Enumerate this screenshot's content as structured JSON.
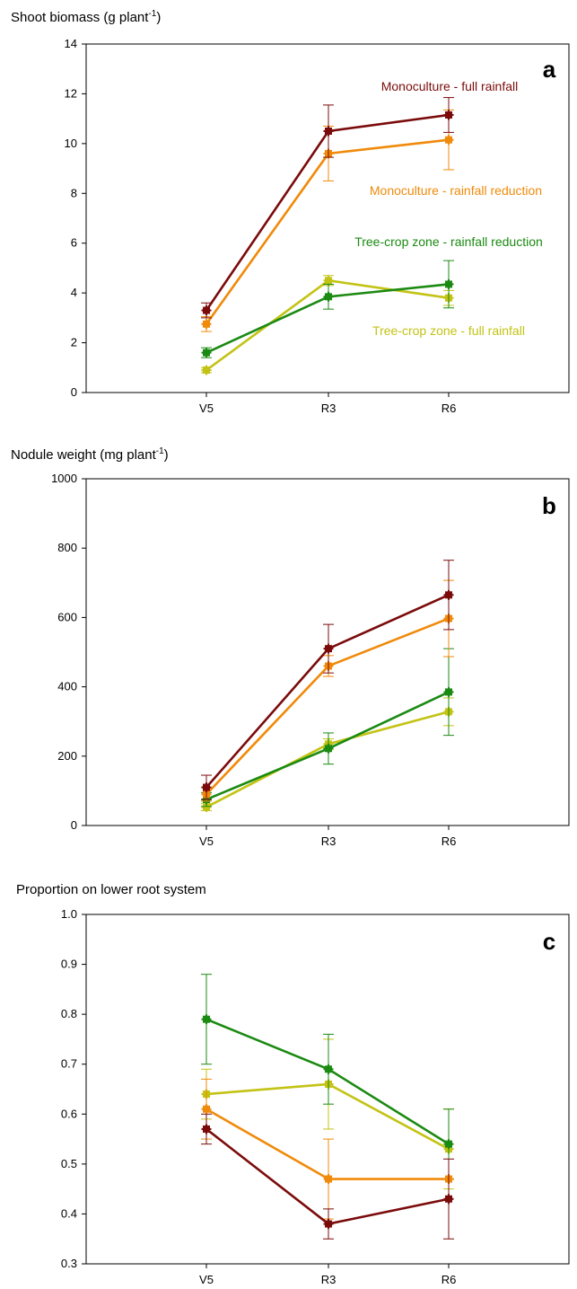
{
  "colors": {
    "monoculture_full": "#7b0b0b",
    "monoculture_reduction": "#f08a0a",
    "treecrop_reduction": "#1b8a12",
    "treecrop_full": "#c3c316"
  },
  "chart_data": [
    {
      "type": "line",
      "panel_label": "a",
      "title_main": "Shoot biomass (g plant",
      "title_sup": "-1",
      "title_tail": ")",
      "categories": [
        "V5",
        "R3",
        "R6"
      ],
      "ylim": [
        0,
        14
      ],
      "yticks": [
        "0",
        "2",
        "4",
        "6",
        "8",
        "10",
        "12",
        "14"
      ],
      "series": [
        {
          "name": "Monoculture - full rainfall",
          "color_key": "monoculture_full",
          "values": [
            3.3,
            10.5,
            11.15
          ],
          "errors": [
            0.3,
            1.05,
            0.7
          ]
        },
        {
          "name": "Monoculture - rainfall reduction",
          "color_key": "monoculture_reduction",
          "values": [
            2.75,
            9.6,
            10.15
          ],
          "errors": [
            0.3,
            1.1,
            1.2
          ]
        },
        {
          "name": "Tree-crop zone - rainfall reduction",
          "color_key": "treecrop_reduction",
          "values": [
            1.6,
            3.85,
            4.35
          ],
          "errors": [
            0.2,
            0.5,
            0.95
          ]
        },
        {
          "name": "Tree-crop zone - full rainfall",
          "color_key": "treecrop_full",
          "values": [
            0.9,
            4.5,
            3.8
          ],
          "errors": [
            0.1,
            0.2,
            0.3
          ]
        }
      ]
    },
    {
      "type": "line",
      "panel_label": "b",
      "title_main": "Nodule weight (mg plant",
      "title_sup": "-1",
      "title_tail": ")",
      "categories": [
        "V5",
        "R3",
        "R6"
      ],
      "ylim": [
        0,
        1000
      ],
      "yticks": [
        "0",
        "200",
        "400",
        "600",
        "800",
        "1000"
      ],
      "series": [
        {
          "color_key": "monoculture_full",
          "values": [
            110,
            510,
            665
          ],
          "errors": [
            35,
            70,
            100
          ]
        },
        {
          "color_key": "monoculture_reduction",
          "values": [
            90,
            460,
            597
          ],
          "errors": [
            20,
            30,
            110
          ]
        },
        {
          "color_key": "treecrop_reduction",
          "values": [
            75,
            222,
            385
          ],
          "errors": [
            20,
            45,
            125
          ]
        },
        {
          "color_key": "treecrop_full",
          "values": [
            53,
            235,
            328
          ],
          "errors": [
            10,
            15,
            40
          ]
        }
      ]
    },
    {
      "type": "line",
      "panel_label": "c",
      "title_main": "Proportion on lower root system",
      "title_sup": "",
      "title_tail": "",
      "categories": [
        "V5",
        "R3",
        "R6"
      ],
      "ylim": [
        0.3,
        1.0
      ],
      "yticks": [
        "0.3",
        "0.4",
        "0.5",
        "0.6",
        "0.7",
        "0.8",
        "0.9",
        "1.0"
      ],
      "series": [
        {
          "color_key": "monoculture_full",
          "values": [
            0.57,
            0.38,
            0.43
          ],
          "errors": [
            0.03,
            0.03,
            0.08
          ]
        },
        {
          "color_key": "monoculture_reduction",
          "values": [
            0.61,
            0.47,
            0.47
          ],
          "errors": [
            0.06,
            0.08,
            0.0
          ]
        },
        {
          "color_key": "treecrop_reduction",
          "values": [
            0.79,
            0.69,
            0.54
          ],
          "errors": [
            0.09,
            0.07,
            0.07
          ]
        },
        {
          "color_key": "treecrop_full",
          "values": [
            0.64,
            0.66,
            0.53
          ],
          "errors": [
            0.05,
            0.09,
            0.08
          ]
        }
      ]
    }
  ]
}
